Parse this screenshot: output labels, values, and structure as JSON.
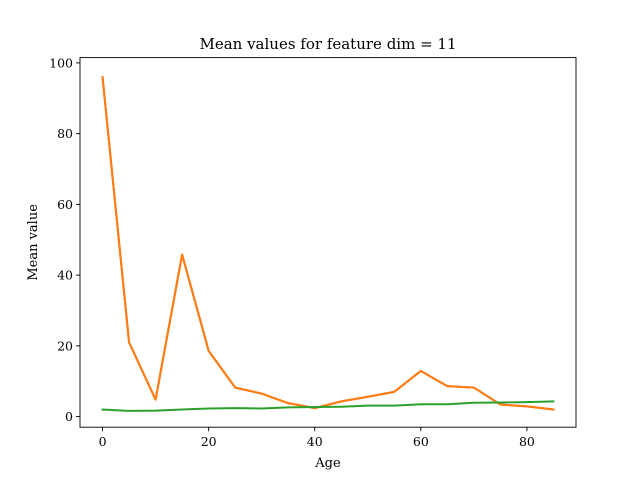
{
  "chart_data": {
    "type": "line",
    "title": "Mean values for feature dim = 11",
    "xlabel": "Age",
    "ylabel": "Mean value",
    "xlim": [
      -4.25,
      89.25
    ],
    "ylim": [
      -3.0,
      101.5
    ],
    "grid": false,
    "xticks": [
      0,
      20,
      40,
      60,
      80
    ],
    "xtick_labels": [
      "0",
      "20",
      "40",
      "60",
      "80"
    ],
    "yticks": [
      0,
      20,
      40,
      60,
      80,
      100
    ],
    "ytick_labels": [
      "0",
      "20",
      "40",
      "60",
      "80",
      "100"
    ],
    "x": [
      0,
      5,
      10,
      15,
      20,
      25,
      30,
      35,
      40,
      45,
      50,
      55,
      60,
      65,
      70,
      75,
      80,
      85
    ],
    "series": [
      {
        "color": "#d62728",
        "values": [
          96,
          21,
          4.8,
          45.8,
          18.6,
          8.2,
          6.5,
          3.8,
          2.4,
          4.3,
          5.6,
          7.0,
          12.9,
          8.6,
          8.2,
          3.4,
          2.9,
          2.0
        ]
      },
      {
        "color": "#ff7f0e",
        "values": [
          96,
          21,
          4.8,
          45.8,
          18.6,
          8.2,
          6.5,
          3.8,
          2.4,
          4.3,
          5.6,
          7.0,
          12.9,
          8.6,
          8.2,
          3.4,
          2.9,
          2.0
        ]
      },
      {
        "color": "#2ca02c",
        "values": [
          2.0,
          1.6,
          1.7,
          2.0,
          2.3,
          2.4,
          2.3,
          2.6,
          2.7,
          2.8,
          3.1,
          3.1,
          3.5,
          3.5,
          3.9,
          4.0,
          4.1,
          4.3
        ]
      }
    ]
  }
}
